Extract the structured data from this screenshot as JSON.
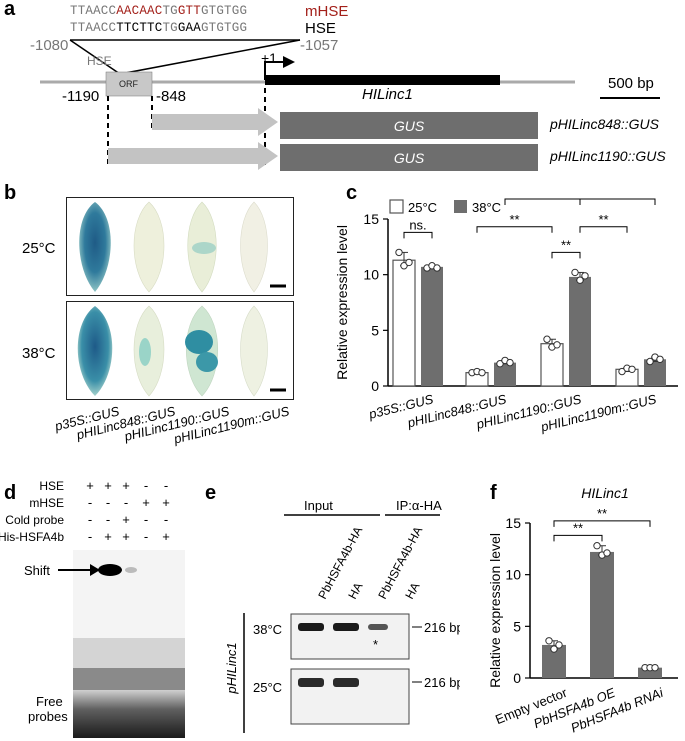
{
  "panels": {
    "a": "a",
    "b": "b",
    "c": "c",
    "d": "d",
    "e": "e",
    "f": "f"
  },
  "a": {
    "mhse_seq_parts": [
      "TTAACC",
      "AACAAC",
      "TG",
      "GTT",
      "GTGTGG"
    ],
    "hse_seq_parts": [
      "TTAACC",
      "TTCTTC",
      "TG",
      "GAA",
      "GTGTGG"
    ],
    "mhse_label": "mHSE",
    "hse_label": "HSE",
    "pos_left_top": "-1080",
    "pos_right_top": "-1057",
    "hse_box_label": "HSE",
    "orf_label": "ORF",
    "pos_1190": "-1190",
    "pos_848": "-848",
    "tss_label": "+1",
    "gene_label": "HILinc1",
    "scale_label": "500 bp",
    "gus_label": "GUS",
    "construct1": "pHILinc848::GUS",
    "construct2": "pHILinc1190::GUS"
  },
  "b": {
    "row1": "25°C",
    "row2": "38°C",
    "labels": [
      "p35S::GUS",
      "pHILinc848::GUS",
      "pHILinc1190::GUS",
      "pHILinc1190m::GUS"
    ]
  },
  "chart_data": {
    "type": "bar",
    "categories": [
      "p35S::GUS",
      "pHILinc848::GUS",
      "pHILinc1190::GUS",
      "pHILinc1190m::GUS"
    ],
    "series": [
      {
        "name": "25°C",
        "values": [
          11.3,
          1.2,
          3.8,
          1.5
        ],
        "points": [
          [
            12.0,
            10.8,
            11.1
          ],
          [
            1.2,
            1.3,
            1.2
          ],
          [
            4.2,
            3.5,
            3.7
          ],
          [
            1.3,
            1.6,
            1.5
          ]
        ],
        "color": "#ffffff"
      },
      {
        "name": "38°C",
        "values": [
          10.7,
          2.1,
          9.8,
          2.4
        ],
        "points": [
          [
            10.6,
            10.8,
            10.6
          ],
          [
            2.0,
            2.3,
            2.1
          ],
          [
            10.2,
            9.5,
            9.9
          ],
          [
            2.2,
            2.6,
            2.4
          ]
        ],
        "color": "#6e6e6e"
      }
    ],
    "ylabel": "Relative expression level",
    "ylim": [
      0,
      15
    ],
    "yticks": [
      "0",
      "5",
      "10",
      "15"
    ],
    "sig_labels": [
      "ns.",
      "**",
      "**",
      "**",
      "**",
      "**"
    ]
  },
  "d": {
    "rows": [
      {
        "label": "HSE",
        "marks": [
          "+",
          "+",
          "+",
          "-",
          "-"
        ]
      },
      {
        "label": "mHSE",
        "marks": [
          "-",
          "-",
          "-",
          "+",
          "+"
        ]
      },
      {
        "label": "Cold probe",
        "marks": [
          "-",
          "-",
          "+",
          "-",
          "-"
        ]
      },
      {
        "label": "His-HSFA4b",
        "marks": [
          "-",
          "+",
          "+",
          "-",
          "+"
        ]
      }
    ],
    "shift_label": "Shift",
    "free_label": "Free\nprobes"
  },
  "e": {
    "input_label": "Input",
    "ip_label": "IP:α-HA",
    "lanes": [
      "PbHSFA4b-HA",
      "HA",
      "PbHSFA4b-HA",
      "HA"
    ],
    "gene_label": "pHILinc1",
    "row1": "38°C",
    "row2": "25°C",
    "size1": "216 bp",
    "size2": "216 bp",
    "star": "*"
  },
  "f_chart": {
    "type": "bar",
    "title": "HILinc1",
    "categories": [
      "Empty vector",
      "PbHSFA4b OE",
      "PbHSFA4b RNAi"
    ],
    "values": [
      3.2,
      12.2,
      1.0
    ],
    "points": [
      [
        3.6,
        2.8,
        3.2
      ],
      [
        12.8,
        11.9,
        12.1
      ],
      [
        1.0,
        1.0,
        1.0
      ]
    ],
    "ylabel": "Relative expression level",
    "ylim": [
      0,
      15
    ],
    "yticks": [
      "0",
      "5",
      "10",
      "15"
    ],
    "sig_labels": [
      "**",
      "**"
    ],
    "color": "#6e6e6e"
  }
}
